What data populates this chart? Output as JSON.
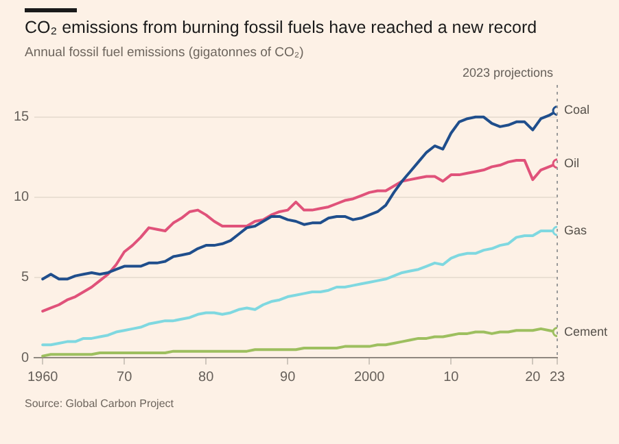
{
  "chart_data": {
    "type": "line",
    "title": "CO₂ emissions from burning fossil fuels have reached a new record",
    "subtitle": "Annual fossil fuel emissions (gigatonnes of CO₂)",
    "x": [
      1960,
      1961,
      1962,
      1963,
      1964,
      1965,
      1966,
      1967,
      1968,
      1969,
      1970,
      1971,
      1972,
      1973,
      1974,
      1975,
      1976,
      1977,
      1978,
      1979,
      1980,
      1981,
      1982,
      1983,
      1984,
      1985,
      1986,
      1987,
      1988,
      1989,
      1990,
      1991,
      1992,
      1993,
      1994,
      1995,
      1996,
      1997,
      1998,
      1999,
      2000,
      2001,
      2002,
      2003,
      2004,
      2005,
      2006,
      2007,
      2008,
      2009,
      2010,
      2011,
      2012,
      2013,
      2014,
      2015,
      2016,
      2017,
      2018,
      2019,
      2020,
      2021,
      2022,
      2023
    ],
    "series": [
      {
        "name": "Coal",
        "color": "#1f4e8c",
        "values": [
          4.9,
          5.2,
          4.9,
          4.9,
          5.1,
          5.2,
          5.3,
          5.2,
          5.3,
          5.5,
          5.7,
          5.7,
          5.7,
          5.9,
          5.9,
          6.0,
          6.3,
          6.4,
          6.5,
          6.8,
          7.0,
          7.0,
          7.1,
          7.3,
          7.7,
          8.1,
          8.2,
          8.5,
          8.8,
          8.8,
          8.6,
          8.5,
          8.3,
          8.4,
          8.4,
          8.7,
          8.8,
          8.8,
          8.6,
          8.7,
          8.9,
          9.1,
          9.5,
          10.3,
          11.0,
          11.6,
          12.2,
          12.8,
          13.2,
          13.0,
          14.0,
          14.7,
          14.9,
          15.0,
          15.0,
          14.6,
          14.4,
          14.5,
          14.7,
          14.7,
          14.2,
          14.9,
          15.1,
          15.4
        ]
      },
      {
        "name": "Oil",
        "color": "#e0527a",
        "values": [
          2.9,
          3.1,
          3.3,
          3.6,
          3.8,
          4.1,
          4.4,
          4.8,
          5.2,
          5.8,
          6.6,
          7.0,
          7.5,
          8.1,
          8.0,
          7.9,
          8.4,
          8.7,
          9.1,
          9.2,
          8.9,
          8.5,
          8.2,
          8.2,
          8.2,
          8.2,
          8.5,
          8.6,
          8.9,
          9.1,
          9.2,
          9.7,
          9.2,
          9.2,
          9.3,
          9.4,
          9.6,
          9.8,
          9.9,
          10.1,
          10.3,
          10.4,
          10.4,
          10.7,
          11.0,
          11.1,
          11.2,
          11.3,
          11.3,
          11.0,
          11.4,
          11.4,
          11.5,
          11.6,
          11.7,
          11.9,
          12.0,
          12.2,
          12.3,
          12.3,
          11.1,
          11.7,
          11.9,
          12.1
        ]
      },
      {
        "name": "Gas",
        "color": "#7fd8e0",
        "values": [
          0.8,
          0.8,
          0.9,
          1.0,
          1.0,
          1.2,
          1.2,
          1.3,
          1.4,
          1.6,
          1.7,
          1.8,
          1.9,
          2.1,
          2.2,
          2.3,
          2.3,
          2.4,
          2.5,
          2.7,
          2.8,
          2.8,
          2.7,
          2.8,
          3.0,
          3.1,
          3.0,
          3.3,
          3.5,
          3.6,
          3.8,
          3.9,
          4.0,
          4.1,
          4.1,
          4.2,
          4.4,
          4.4,
          4.5,
          4.6,
          4.7,
          4.8,
          4.9,
          5.1,
          5.3,
          5.4,
          5.5,
          5.7,
          5.9,
          5.8,
          6.2,
          6.4,
          6.5,
          6.5,
          6.7,
          6.8,
          7.0,
          7.1,
          7.5,
          7.6,
          7.6,
          7.9,
          7.9,
          7.9
        ]
      },
      {
        "name": "Cement",
        "color": "#9dbf5f",
        "values": [
          0.1,
          0.2,
          0.2,
          0.2,
          0.2,
          0.2,
          0.2,
          0.3,
          0.3,
          0.3,
          0.3,
          0.3,
          0.3,
          0.3,
          0.3,
          0.3,
          0.4,
          0.4,
          0.4,
          0.4,
          0.4,
          0.4,
          0.4,
          0.4,
          0.4,
          0.4,
          0.5,
          0.5,
          0.5,
          0.5,
          0.5,
          0.5,
          0.6,
          0.6,
          0.6,
          0.6,
          0.6,
          0.7,
          0.7,
          0.7,
          0.7,
          0.8,
          0.8,
          0.9,
          1.0,
          1.1,
          1.2,
          1.2,
          1.3,
          1.3,
          1.4,
          1.5,
          1.5,
          1.6,
          1.6,
          1.5,
          1.6,
          1.6,
          1.7,
          1.7,
          1.7,
          1.8,
          1.7,
          1.6
        ]
      }
    ],
    "xlim": [
      1959,
      2023
    ],
    "xticks": [
      1960,
      {
        "value": 1970,
        "label": "70"
      },
      {
        "value": 1980,
        "label": "80"
      },
      {
        "value": 1990,
        "label": "90"
      },
      2000,
      {
        "value": 2010,
        "label": "10"
      },
      {
        "value": 2020,
        "label": "20"
      },
      {
        "value": 2023,
        "label": "23"
      }
    ],
    "ylim": [
      0,
      17
    ],
    "yticks": [
      0,
      5,
      10,
      15
    ],
    "ref_lines": [
      {
        "axis": "x",
        "value": 2023,
        "label": "2023 projections",
        "color": "#9a9a9a",
        "line_style": "dotted"
      }
    ],
    "grid": "y",
    "legend": false,
    "annotations": [
      "Source: Global Carbon Project"
    ]
  }
}
